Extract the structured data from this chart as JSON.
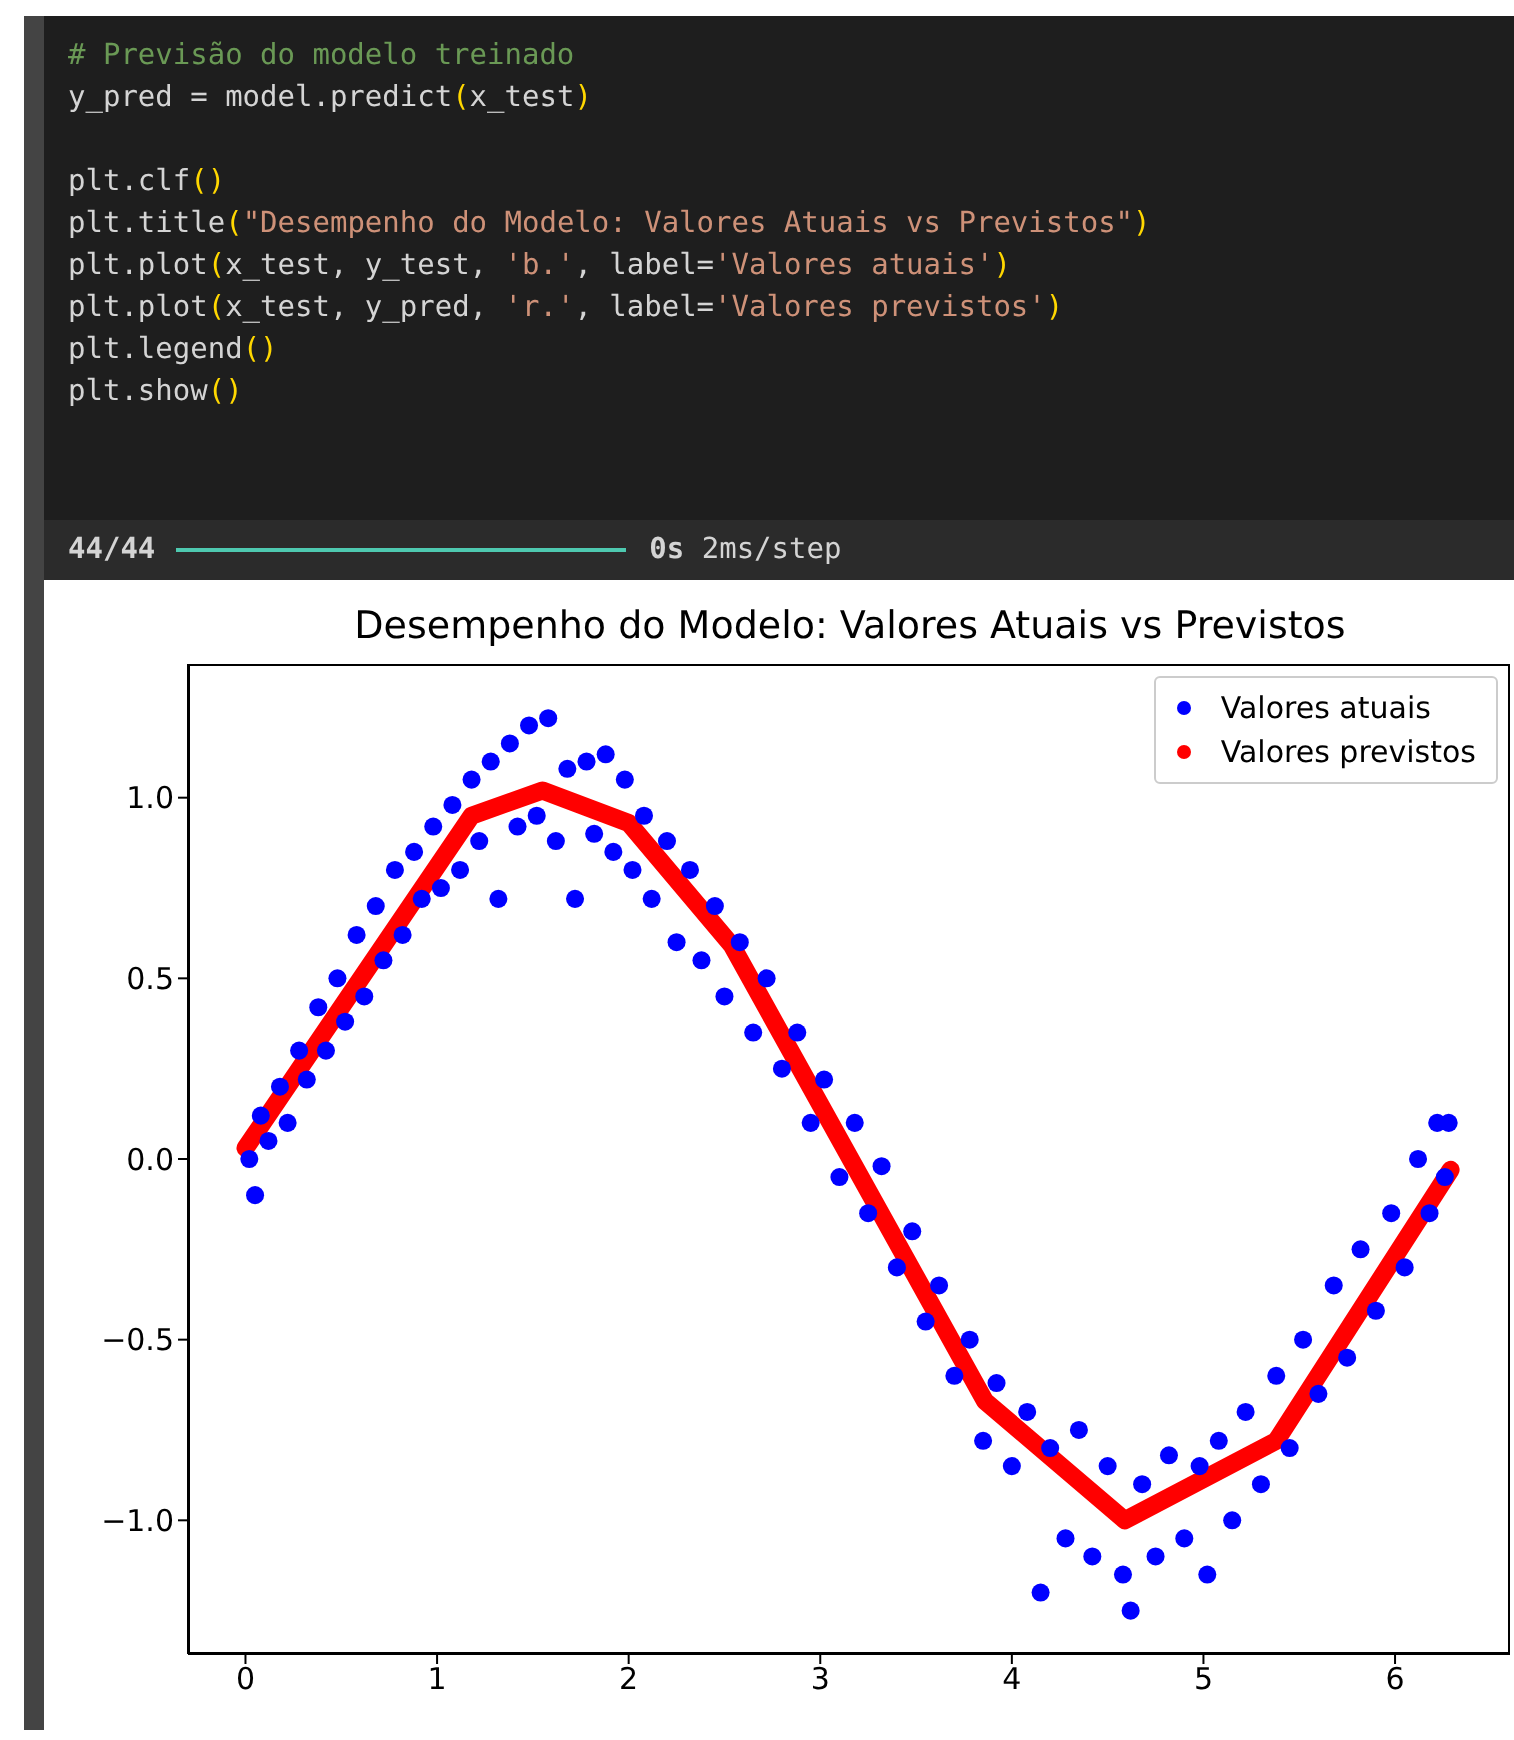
{
  "chart_data": {
    "type": "scatter",
    "title": "Desempenho do Modelo: Valores Atuais vs Previstos",
    "annotations": [
      "# Previsão do modelo treinado",
      "y_pred = model.predict(x_test)",
      "plt.clf()",
      "plt.title(\"Desempenho do Modelo: Valores Atuais vs Previstos\")",
      "plt.plot(x_test, y_test, 'b.', label='Valores atuais')",
      "plt.plot(x_test, y_pred, 'r.', label='Valores previstos')",
      "plt.legend()",
      "plt.show()",
      "44/44",
      "0s 2ms/step"
    ],
    "xlim": [
      -0.3,
      6.6
    ],
    "xticks": [
      0,
      1,
      2,
      3,
      4,
      5,
      6
    ],
    "ylim": [
      -1.37,
      1.37
    ],
    "yticks": [
      {
        "value": -1.0,
        "label": "−1.0"
      },
      {
        "value": -0.5,
        "label": "−0.5"
      },
      {
        "value": 0.0,
        "label": "0.0"
      },
      {
        "value": 0.5,
        "label": "0.5"
      },
      {
        "value": 1.0,
        "label": "1.0"
      }
    ],
    "legend": "top right",
    "series": [
      {
        "name": "Valores atuais",
        "color": "#0000ff",
        "type": "scatter",
        "marker": "circle",
        "x": [
          0.02,
          0.05,
          0.08,
          0.12,
          0.18,
          0.22,
          0.28,
          0.32,
          0.38,
          0.42,
          0.48,
          0.52,
          0.58,
          0.62,
          0.68,
          0.72,
          0.78,
          0.82,
          0.88,
          0.92,
          0.98,
          1.02,
          1.08,
          1.12,
          1.18,
          1.22,
          1.28,
          1.32,
          1.38,
          1.42,
          1.48,
          1.52,
          1.58,
          1.62,
          1.68,
          1.72,
          1.78,
          1.82,
          1.88,
          1.92,
          1.98,
          2.02,
          2.08,
          2.12,
          2.2,
          2.25,
          2.32,
          2.38,
          2.45,
          2.5,
          2.58,
          2.65,
          2.72,
          2.8,
          2.88,
          2.95,
          3.02,
          3.1,
          3.18,
          3.25,
          3.32,
          3.4,
          3.48,
          3.55,
          3.62,
          3.7,
          3.78,
          3.85,
          3.92,
          4.0,
          4.08,
          4.15,
          4.2,
          4.28,
          4.35,
          4.42,
          4.5,
          4.58,
          4.62,
          4.68,
          4.75,
          4.82,
          4.9,
          4.98,
          5.02,
          5.08,
          5.15,
          5.22,
          5.3,
          5.38,
          5.45,
          5.52,
          5.6,
          5.68,
          5.75,
          5.82,
          5.9,
          5.98,
          6.05,
          6.12,
          6.18,
          6.22,
          6.26,
          6.28
        ],
        "values": [
          0.0,
          -0.1,
          0.12,
          0.05,
          0.2,
          0.1,
          0.3,
          0.22,
          0.42,
          0.3,
          0.5,
          0.38,
          0.62,
          0.45,
          0.7,
          0.55,
          0.8,
          0.62,
          0.85,
          0.72,
          0.92,
          0.75,
          0.98,
          0.8,
          1.05,
          0.88,
          1.1,
          0.72,
          1.15,
          0.92,
          1.2,
          0.95,
          1.22,
          0.88,
          1.08,
          0.72,
          1.1,
          0.9,
          1.12,
          0.85,
          1.05,
          0.8,
          0.95,
          0.72,
          0.88,
          0.6,
          0.8,
          0.55,
          0.7,
          0.45,
          0.6,
          0.35,
          0.5,
          0.25,
          0.35,
          0.1,
          0.22,
          -0.05,
          0.1,
          -0.15,
          -0.02,
          -0.3,
          -0.2,
          -0.45,
          -0.35,
          -0.6,
          -0.5,
          -0.78,
          -0.62,
          -0.85,
          -0.7,
          -1.2,
          -0.8,
          -1.05,
          -0.75,
          -1.1,
          -0.85,
          -1.15,
          -1.25,
          -0.9,
          -1.1,
          -0.82,
          -1.05,
          -0.85,
          -1.15,
          -0.78,
          -1.0,
          -0.7,
          -0.9,
          -0.6,
          -0.8,
          -0.5,
          -0.65,
          -0.35,
          -0.55,
          -0.25,
          -0.42,
          -0.15,
          -0.3,
          0.0,
          -0.15,
          0.1,
          -0.05,
          0.1
        ]
      },
      {
        "name": "Valores previstos",
        "color": "#ff0000",
        "type": "line",
        "x": [
          0.0,
          1.18,
          1.55,
          2.0,
          2.54,
          3.86,
          4.59,
          5.38,
          6.29
        ],
        "values": [
          0.03,
          0.95,
          1.02,
          0.93,
          0.59,
          -0.67,
          -1.0,
          -0.78,
          -0.03
        ]
      }
    ]
  }
}
